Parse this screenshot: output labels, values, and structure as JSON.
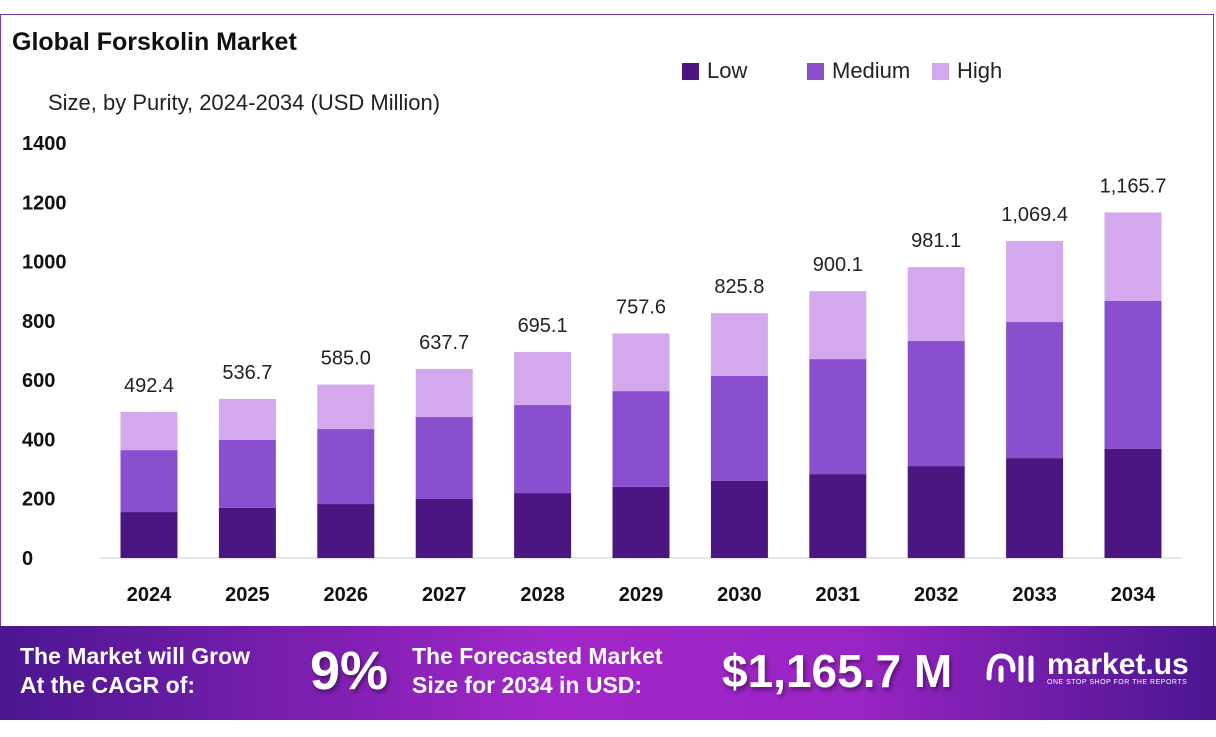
{
  "chart_data": {
    "type": "bar",
    "stacked": true,
    "title": "Global Forskolin Market",
    "subtitle": "Size, by Purity, 2024-2034 (USD Million)",
    "categories": [
      "2024",
      "2025",
      "2026",
      "2027",
      "2028",
      "2029",
      "2030",
      "2031",
      "2032",
      "2033",
      "2034"
    ],
    "series": [
      {
        "name": "Low",
        "color": "#4b1582",
        "values": [
          155,
          169,
          182,
          199,
          219,
          240,
          260,
          283,
          310,
          337,
          368
        ]
      },
      {
        "name": "Medium",
        "color": "#8a4fcf",
        "values": [
          209,
          229,
          253,
          277,
          297,
          323,
          354,
          388,
          422,
          459,
          499
        ]
      },
      {
        "name": "High",
        "color": "#d3a8ec",
        "values": [
          128.4,
          138.7,
          150.0,
          161.7,
          179.1,
          194.6,
          211.8,
          229.1,
          249.1,
          273.4,
          298.7
        ]
      }
    ],
    "totals": [
      "492.4",
      "536.7",
      "585.0",
      "637.7",
      "695.1",
      "757.6",
      "825.8",
      "900.1",
      "981.1",
      "1,069.4",
      "1,165.7"
    ],
    "yticks": [
      "0",
      "200",
      "400",
      "600",
      "800",
      "1000",
      "1200",
      "1400"
    ],
    "ylim": [
      0,
      1400
    ],
    "grid": false,
    "legend": "top-right"
  },
  "footer": {
    "cagr_label_1": "The Market will Grow",
    "cagr_label_2": "At the CAGR of:",
    "cagr_value": "9%",
    "forecast_label_1": "The Forecasted Market",
    "forecast_label_2": "Size for 2034 in USD:",
    "forecast_value": "$1,165.7 M",
    "logo_name": "market.us",
    "logo_tagline": "ONE STOP SHOP FOR THE REPORTS"
  }
}
